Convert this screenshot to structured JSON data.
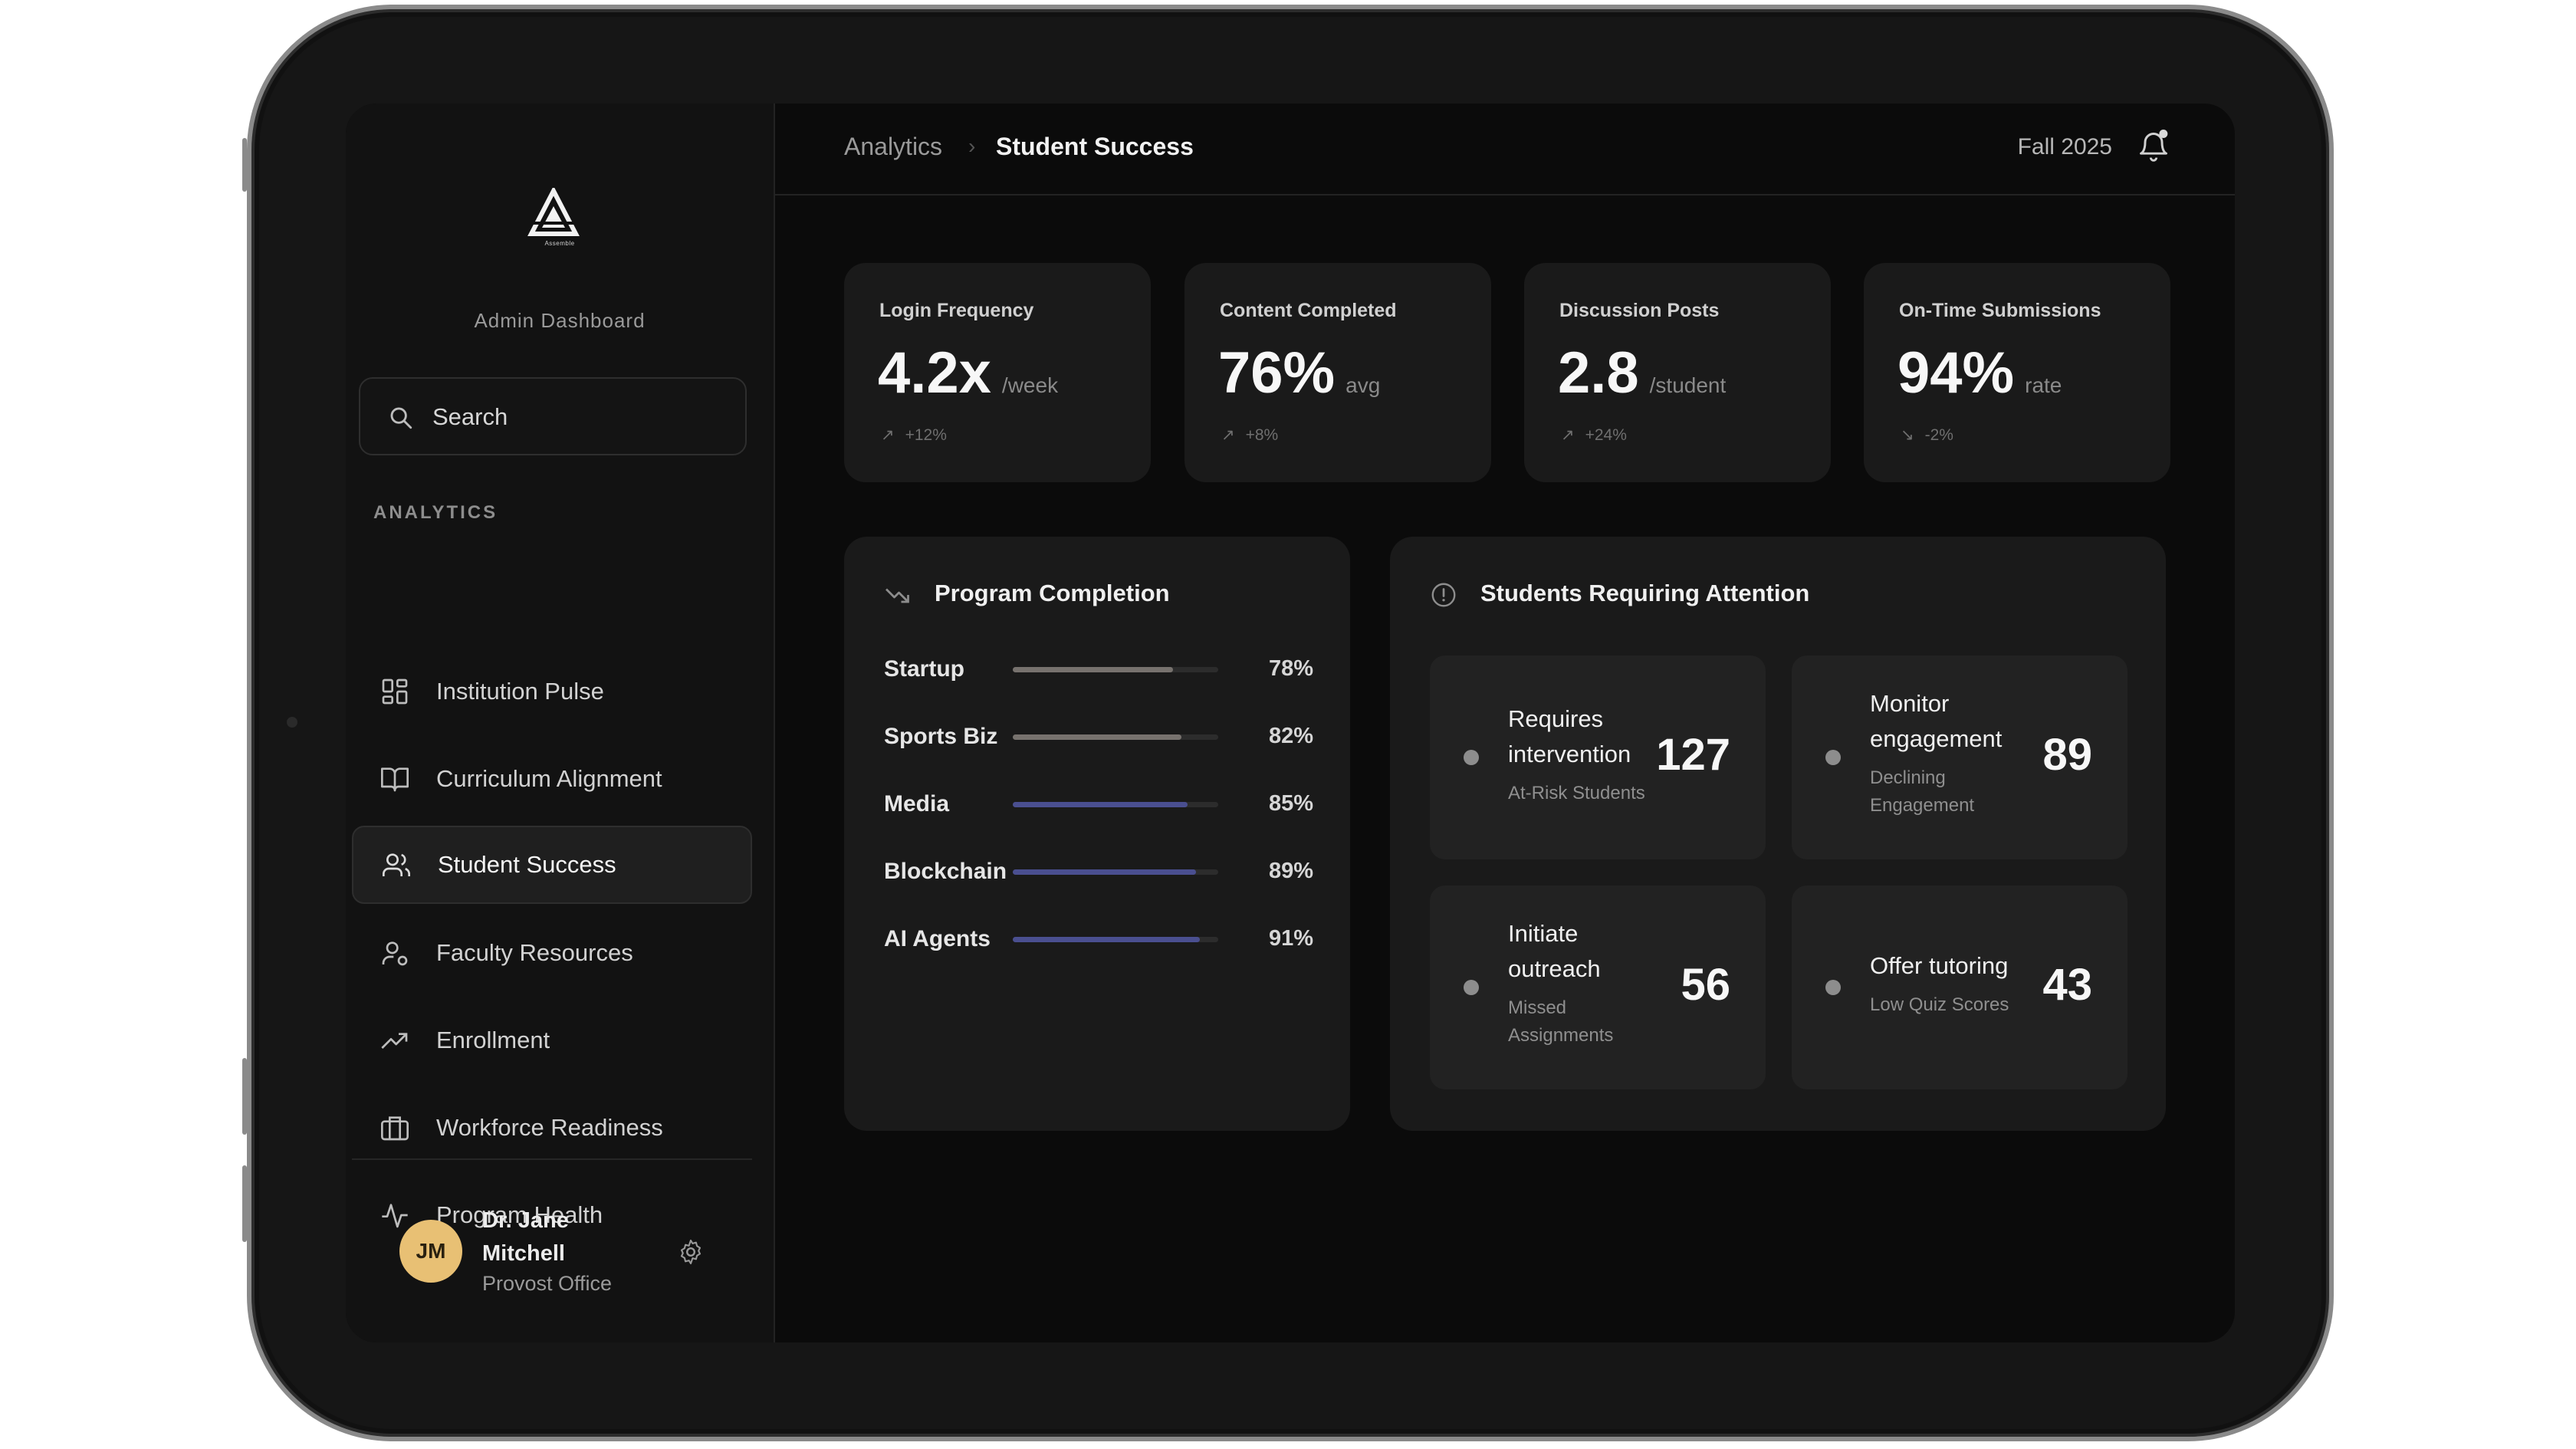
{
  "sidebar": {
    "logo_text": "Assemble",
    "title": "Admin Dashboard",
    "search_placeholder": "Search",
    "section_label": "ANALYTICS",
    "items": [
      {
        "label": "Institution Pulse",
        "icon": "grid-icon"
      },
      {
        "label": "Curriculum Alignment",
        "icon": "book-icon"
      },
      {
        "label": "Student Success",
        "icon": "users-icon",
        "active": true
      },
      {
        "label": "Faculty Resources",
        "icon": "user-icon"
      },
      {
        "label": "Enrollment",
        "icon": "trending-up-icon"
      },
      {
        "label": "Workforce Readiness",
        "icon": "briefcase-icon"
      },
      {
        "label": "Program Health",
        "icon": "activity-icon"
      }
    ],
    "user": {
      "initials": "JM",
      "name": "Dr. Jane Mitchell",
      "role": "Provost Office"
    }
  },
  "header": {
    "breadcrumb": [
      "Analytics",
      "Student Success"
    ],
    "separator": "›",
    "term": "Fall 2025"
  },
  "stats": [
    {
      "label": "Login Frequency",
      "value": "4.2x",
      "unit": "/week",
      "delta": "+12%",
      "arrow": "↗"
    },
    {
      "label": "Content Completed",
      "value": "76%",
      "unit": "avg",
      "delta": "+8%",
      "arrow": "↗"
    },
    {
      "label": "Discussion Posts",
      "value": "2.8",
      "unit": "/student",
      "delta": "+24%",
      "arrow": "↗"
    },
    {
      "label": "On-Time Submissions",
      "value": "94%",
      "unit": "rate",
      "delta": "-2%",
      "arrow": "↘"
    }
  ],
  "program_completion": {
    "title": "Program Completion",
    "rows": [
      {
        "name": "Startup",
        "label": "78%",
        "value": 0.78,
        "color": "#77726e"
      },
      {
        "name": "Sports Biz",
        "label": "82%",
        "value": 0.82,
        "color": "#77726e"
      },
      {
        "name": "Media",
        "label": "85%",
        "value": 0.85,
        "color": "#4a4f90"
      },
      {
        "name": "Blockchain",
        "label": "89%",
        "value": 0.89,
        "color": "#4a4f90"
      },
      {
        "name": "AI Agents",
        "label": "91%",
        "value": 0.91,
        "color": "#4a4f90"
      }
    ]
  },
  "attention": {
    "title": "Students Requiring Attention",
    "cards": [
      {
        "title": "Requires intervention",
        "subtitle": "At-Risk Students",
        "count": "127"
      },
      {
        "title": "Monitor engagement",
        "subtitle": "Declining Engagement",
        "count": "89"
      },
      {
        "title": "Initiate outreach",
        "subtitle": "Missed Assignments",
        "count": "56"
      },
      {
        "title": "Offer tutoring",
        "subtitle": "Low Quiz Scores",
        "count": "43"
      }
    ]
  },
  "colors": {
    "accent_avatar": "#e8c074",
    "bar_neutral": "#77726e",
    "bar_indigo": "#4a4f90",
    "surface": "#1a1a1a"
  }
}
